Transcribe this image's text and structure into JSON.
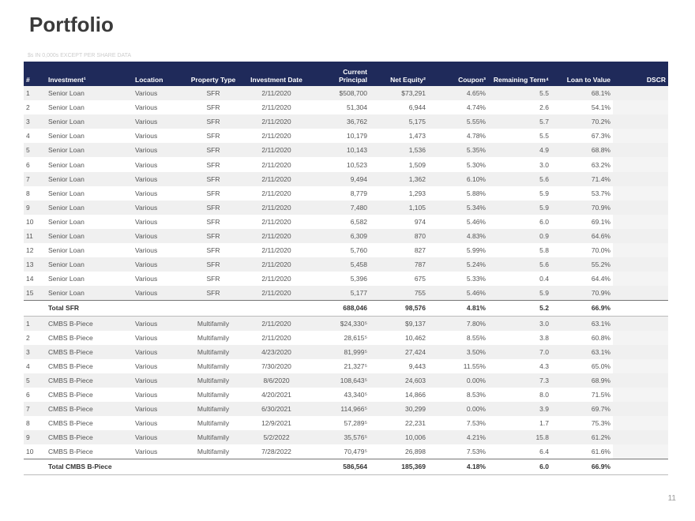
{
  "header": {
    "title": "Portfolio",
    "subtitle": "$s IN 0,000s EXCEPT PER SHARE DATA"
  },
  "footer": {
    "page": "11"
  },
  "table": {
    "columns": [
      "#",
      "Investment¹",
      "Location",
      "Property Type",
      "Investment Date",
      "Current Principal",
      "Net Equity²",
      "Coupon³",
      "Remaining Term⁴",
      "Loan to Value",
      "DSCR"
    ],
    "sections": [
      {
        "rows": [
          [
            "1",
            "Senior Loan",
            "Various",
            "SFR",
            "2/11/2020",
            "$508,700",
            "$73,291",
            "4.65%",
            "5.5",
            "68.1%"
          ],
          [
            "2",
            "Senior Loan",
            "Various",
            "SFR",
            "2/11/2020",
            "51,304",
            "6,944",
            "4.74%",
            "2.6",
            "54.1%"
          ],
          [
            "3",
            "Senior Loan",
            "Various",
            "SFR",
            "2/11/2020",
            "36,762",
            "5,175",
            "5.55%",
            "5.7",
            "70.2%"
          ],
          [
            "4",
            "Senior Loan",
            "Various",
            "SFR",
            "2/11/2020",
            "10,179",
            "1,473",
            "4.78%",
            "5.5",
            "67.3%"
          ],
          [
            "5",
            "Senior Loan",
            "Various",
            "SFR",
            "2/11/2020",
            "10,143",
            "1,536",
            "5.35%",
            "4.9",
            "68.8%"
          ],
          [
            "6",
            "Senior Loan",
            "Various",
            "SFR",
            "2/11/2020",
            "10,523",
            "1,509",
            "5.30%",
            "3.0",
            "63.2%"
          ],
          [
            "7",
            "Senior Loan",
            "Various",
            "SFR",
            "2/11/2020",
            "9,494",
            "1,362",
            "6.10%",
            "5.6",
            "71.4%"
          ],
          [
            "8",
            "Senior Loan",
            "Various",
            "SFR",
            "2/11/2020",
            "8,779",
            "1,293",
            "5.88%",
            "5.9",
            "53.7%"
          ],
          [
            "9",
            "Senior Loan",
            "Various",
            "SFR",
            "2/11/2020",
            "7,480",
            "1,105",
            "5.34%",
            "5.9",
            "70.9%"
          ],
          [
            "10",
            "Senior Loan",
            "Various",
            "SFR",
            "2/11/2020",
            "6,582",
            "974",
            "5.46%",
            "6.0",
            "69.1%"
          ],
          [
            "11",
            "Senior Loan",
            "Various",
            "SFR",
            "2/11/2020",
            "6,309",
            "870",
            "4.83%",
            "0.9",
            "64.6%"
          ],
          [
            "12",
            "Senior Loan",
            "Various",
            "SFR",
            "2/11/2020",
            "5,760",
            "827",
            "5.99%",
            "5.8",
            "70.0%"
          ],
          [
            "13",
            "Senior Loan",
            "Various",
            "SFR",
            "2/11/2020",
            "5,458",
            "787",
            "5.24%",
            "5.6",
            "55.2%"
          ],
          [
            "14",
            "Senior Loan",
            "Various",
            "SFR",
            "2/11/2020",
            "5,396",
            "675",
            "5.33%",
            "0.4",
            "64.4%"
          ],
          [
            "15",
            "Senior Loan",
            "Various",
            "SFR",
            "2/11/2020",
            "5,177",
            "755",
            "5.46%",
            "5.9",
            "70.9%"
          ]
        ],
        "total": [
          "Total SFR",
          "688,046",
          "98,576",
          "4.81%",
          "5.2",
          "66.9%"
        ]
      },
      {
        "rows": [
          [
            "1",
            "CMBS B-Piece",
            "Various",
            "Multifamily",
            "2/11/2020",
            "$24,330⁵",
            "$9,137",
            "7.80%",
            "3.0",
            "63.1%"
          ],
          [
            "2",
            "CMBS B-Piece",
            "Various",
            "Multifamily",
            "2/11/2020",
            "28,615⁵",
            "10,462",
            "8.55%",
            "3.8",
            "60.8%"
          ],
          [
            "3",
            "CMBS B-Piece",
            "Various",
            "Multifamily",
            "4/23/2020",
            "81,999⁵",
            "27,424",
            "3.50%",
            "7.0",
            "63.1%"
          ],
          [
            "4",
            "CMBS B-Piece",
            "Various",
            "Multifamily",
            "7/30/2020",
            "21,327⁵",
            "9,443",
            "11.55%",
            "4.3",
            "65.0%"
          ],
          [
            "5",
            "CMBS B-Piece",
            "Various",
            "Multifamily",
            "8/6/2020",
            "108,643⁵",
            "24,603",
            "0.00%",
            "7.3",
            "68.9%"
          ],
          [
            "6",
            "CMBS B-Piece",
            "Various",
            "Multifamily",
            "4/20/2021",
            "43,340⁵",
            "14,866",
            "8.53%",
            "8.0",
            "71.5%"
          ],
          [
            "7",
            "CMBS B-Piece",
            "Various",
            "Multifamily",
            "6/30/2021",
            "114,966⁵",
            "30,299",
            "0.00%",
            "3.9",
            "69.7%"
          ],
          [
            "8",
            "CMBS B-Piece",
            "Various",
            "Multifamily",
            "12/9/2021",
            "57,289⁵",
            "22,231",
            "7.53%",
            "1.7",
            "75.3%"
          ],
          [
            "9",
            "CMBS B-Piece",
            "Various",
            "Multifamily",
            "5/2/2022",
            "35,576⁵",
            "10,006",
            "4.21%",
            "15.8",
            "61.2%"
          ],
          [
            "10",
            "CMBS B-Piece",
            "Various",
            "Multifamily",
            "7/28/2022",
            "70,479⁵",
            "26,898",
            "7.53%",
            "6.4",
            "61.6%"
          ]
        ],
        "total": [
          "Total CMBS B-Piece",
          "586,564",
          "185,369",
          "4.18%",
          "6.0",
          "66.9%"
        ]
      }
    ]
  }
}
